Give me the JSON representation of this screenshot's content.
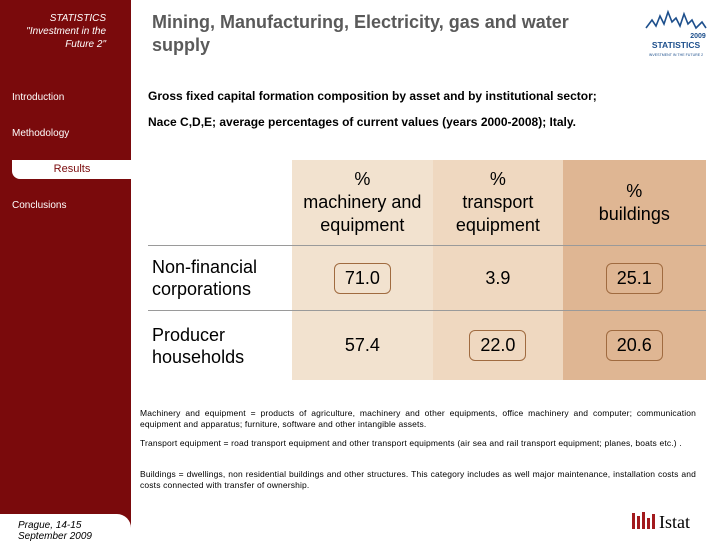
{
  "sidebar": {
    "header_line1": "STATISTICS",
    "header_line2": "\"Investment in the",
    "header_line3": "Future 2\"",
    "items": [
      {
        "label": "Introduction"
      },
      {
        "label": "Methodology"
      },
      {
        "label": "Results"
      },
      {
        "label": "Conclusions"
      }
    ],
    "footer_date": "Prague, 14-15 September 2009"
  },
  "header": {
    "title": "Mining, Manufacturing, Electricity, gas and water supply",
    "subtitle_line1": "Gross fixed capital formation composition by asset and by institutional sector;",
    "subtitle_line2": "Nace C,D,E; average percentages of current values (years 2000-2008); Italy."
  },
  "table": {
    "columns": [
      {
        "pct": "%",
        "label_line1": "machinery and",
        "label_line2": "equipment"
      },
      {
        "pct": "%",
        "label_line1": "transport",
        "label_line2": "equipment"
      },
      {
        "pct": "%",
        "label_line1": "buildings",
        "label_line2": ""
      }
    ],
    "rows": [
      {
        "label_line1": "Non-financial",
        "label_line2": "corporations",
        "values": [
          "71.0",
          "3.9",
          "25.1"
        ]
      },
      {
        "label_line1": "Producer",
        "label_line2": "households",
        "values": [
          "57.4",
          "22.0",
          "20.6"
        ]
      }
    ]
  },
  "notes": {
    "machinery": "Machinery and equipment = products of agriculture, machinery and other equipments, office machinery and computer; communication equipment and apparatus; furniture, software and other intangible assets.",
    "transport": "Transport equipment = road transport equipment and other transport equipments (air sea and rail transport equipment; planes, boats etc.) .",
    "buildings": "Buildings = dwellings, non residential buildings and other structures. This category includes as well major maintenance, installation costs and costs connected with transfer of ownership."
  },
  "logos": {
    "stat_year": "2009",
    "stat_word": "STATISTICS",
    "stat_tagline": "INVESTMENT IN THE FUTURE 2",
    "istat": "Istat"
  },
  "colors": {
    "sidebar": "#7a0a0c",
    "col_machinery": "#f2e2cf",
    "col_transport": "#efd8c0",
    "col_buildings": "#dfb693"
  }
}
